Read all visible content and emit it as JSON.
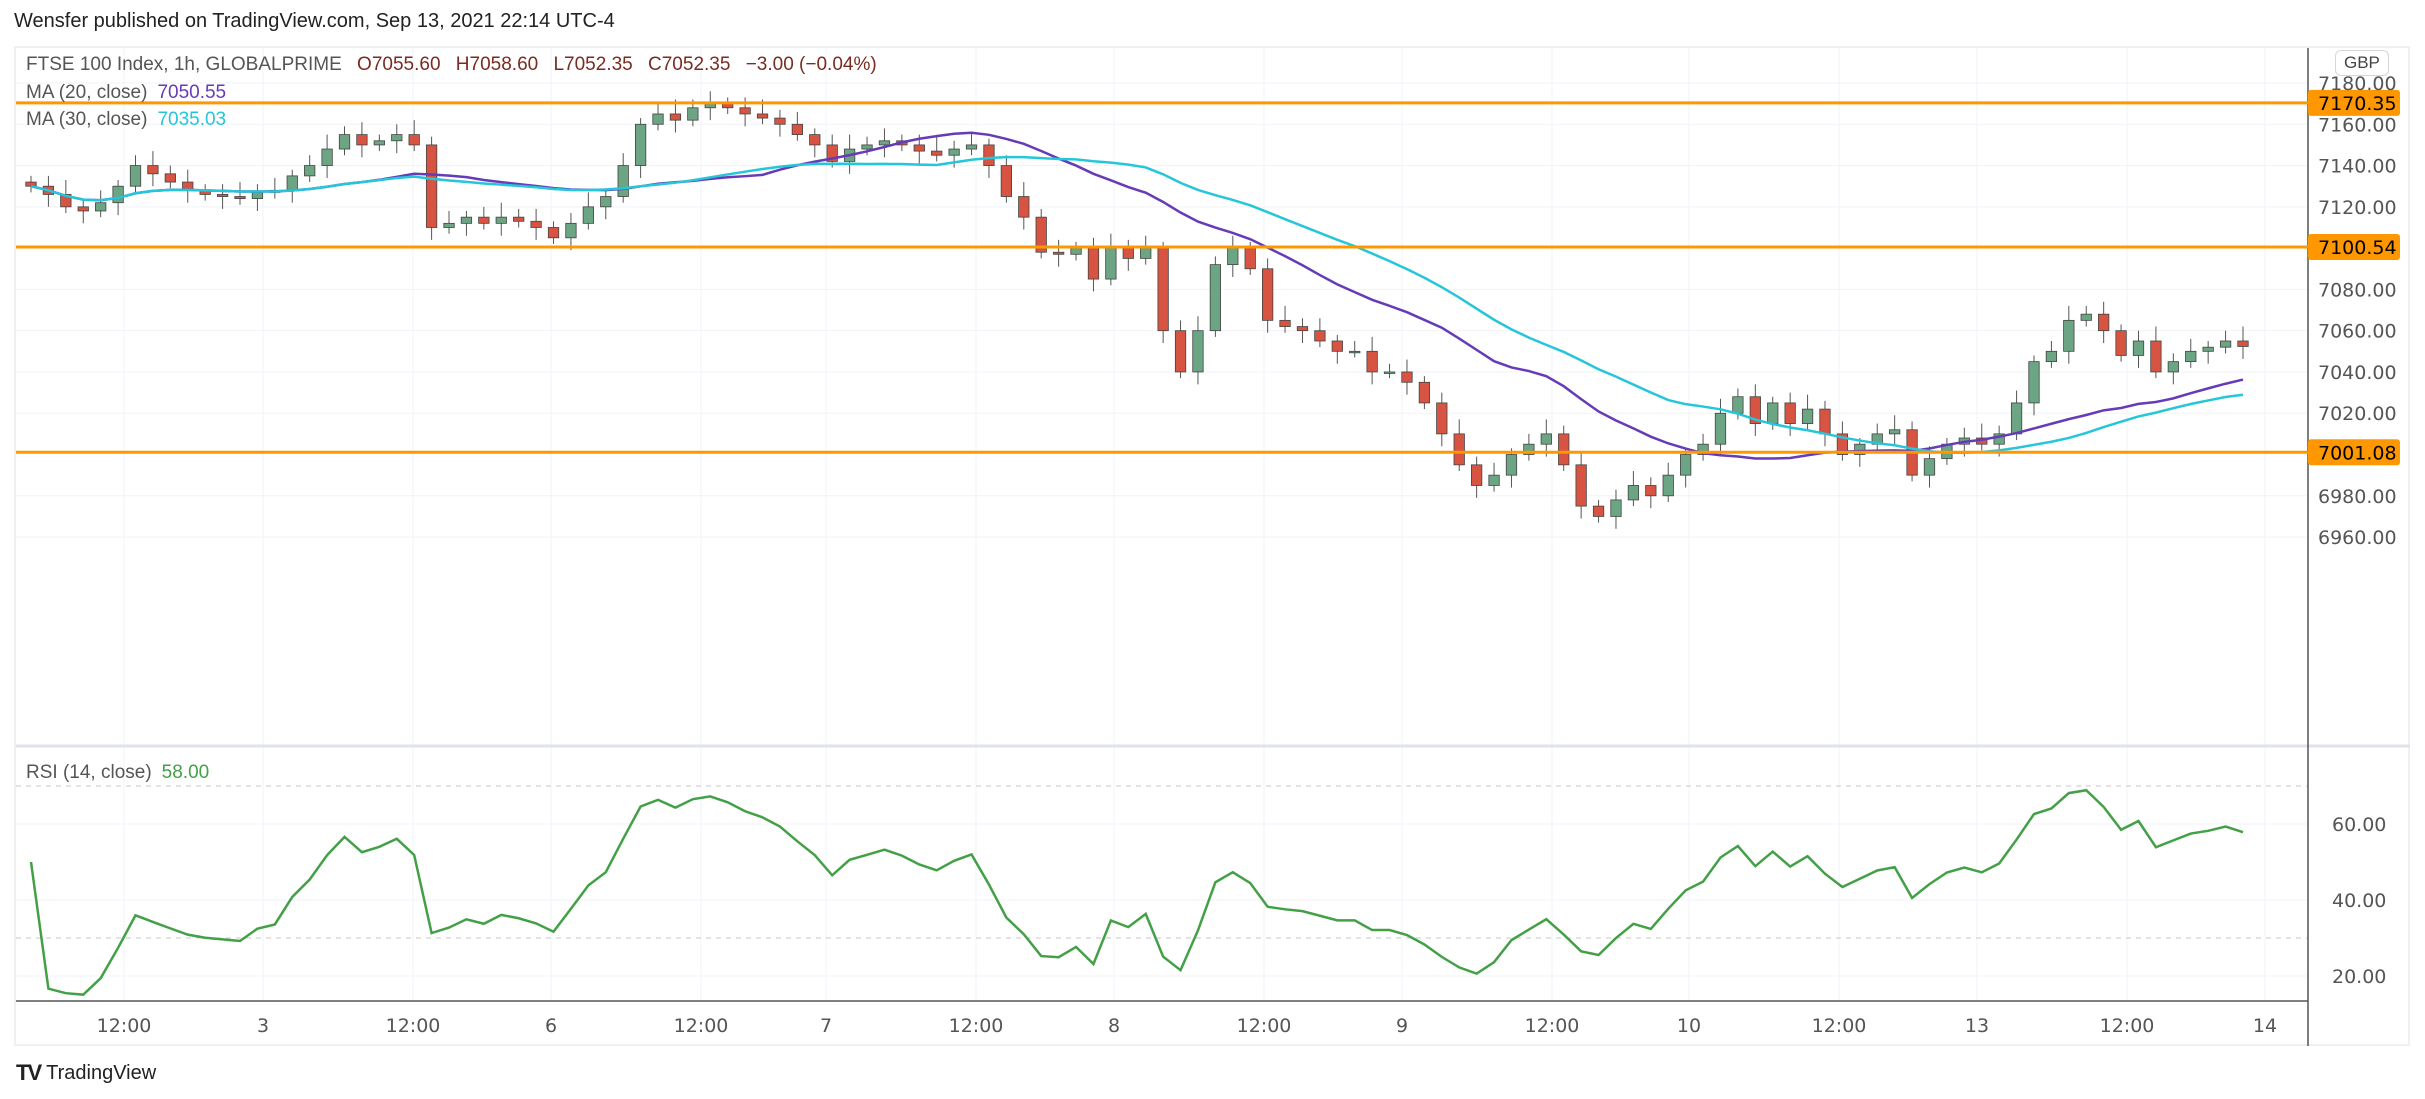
{
  "header": {
    "published": "Wensfer published on TradingView.com, Sep 13, 2021 22:14 UTC-4"
  },
  "legend": {
    "symbol": "FTSE 100 Index, 1h, GLOBALPRIME",
    "open": "O7055.60",
    "high": "H7058.60",
    "low": "L7052.35",
    "close": "C7052.35",
    "change": "−3.00 (−0.04%)",
    "ma20_label": "MA (20, close)",
    "ma20_value": "7050.55",
    "ma30_label": "MA (30, close)",
    "ma30_value": "7035.03",
    "rsi_label": "RSI (14, close)",
    "rsi_value": "58.00"
  },
  "currency": "GBP",
  "footer": {
    "brand": "TradingView"
  },
  "colors": {
    "up": "#6ba583",
    "down": "#d75442",
    "ma20": "#673ab7",
    "ma30": "#26c6da",
    "rsi": "#43a047",
    "level": "#ff9800"
  },
  "chart_data": {
    "type": "candlestick",
    "title": "FTSE 100 Index, 1h, GLOBALPRIME",
    "ylim": [
      6945,
      7190
    ],
    "y_ticks": [
      "7180.00",
      "7160.00",
      "7140.00",
      "7120.00",
      "7080.00",
      "7060.00",
      "7040.00",
      "7020.00",
      "6980.00",
      "6960.00"
    ],
    "y_tick_values": [
      7180,
      7160,
      7140,
      7120,
      7080,
      7060,
      7040,
      7020,
      6980,
      6960
    ],
    "levels": [
      {
        "value": 7170.35,
        "label": "7170.35"
      },
      {
        "value": 7100.54,
        "label": "7100.54"
      },
      {
        "value": 7001.08,
        "label": "7001.08"
      }
    ],
    "x_ticks": [
      "12:00",
      "3",
      "12:00",
      "6",
      "12:00",
      "7",
      "12:00",
      "8",
      "12:00",
      "9",
      "12:00",
      "10",
      "12:00",
      "13",
      "12:00",
      "14"
    ],
    "closes": [
      7130,
      7126,
      7120,
      7118,
      7122,
      7130,
      7140,
      7136,
      7132,
      7128,
      7126,
      7125,
      7124,
      7127,
      7128,
      7135,
      7140,
      7148,
      7155,
      7150,
      7152,
      7155,
      7150,
      7110,
      7112,
      7115,
      7112,
      7115,
      7113,
      7110,
      7105,
      7112,
      7120,
      7125,
      7140,
      7160,
      7165,
      7162,
      7168,
      7170,
      7168,
      7165,
      7163,
      7160,
      7155,
      7150,
      7142,
      7148,
      7150,
      7152,
      7150,
      7147,
      7145,
      7148,
      7150,
      7140,
      7125,
      7115,
      7098,
      7097,
      7100,
      7085,
      7100,
      7095,
      7100,
      7060,
      7040,
      7060,
      7092,
      7100,
      7090,
      7065,
      7062,
      7060,
      7055,
      7050,
      7050,
      7040,
      7040,
      7035,
      7025,
      7010,
      6995,
      6985,
      6990,
      7000,
      7005,
      7010,
      6995,
      6975,
      6970,
      6978,
      6985,
      6980,
      6990,
      7000,
      7005,
      7020,
      7028,
      7015,
      7025,
      7015,
      7022,
      7010,
      7000,
      7005,
      7010,
      7012,
      6990,
      6998,
      7005,
      7008,
      7005,
      7010,
      7025,
      7045,
      7050,
      7065,
      7068,
      7060,
      7048,
      7055,
      7040,
      7045,
      7050,
      7052,
      7055,
      7052.35
    ],
    "rsi_ylim": [
      12,
      80
    ],
    "rsi_ticks": [
      "60.00",
      "40.00",
      "20.00"
    ],
    "rsi_tick_values": [
      60,
      40,
      20
    ],
    "rsi_bands": [
      70,
      30
    ]
  }
}
